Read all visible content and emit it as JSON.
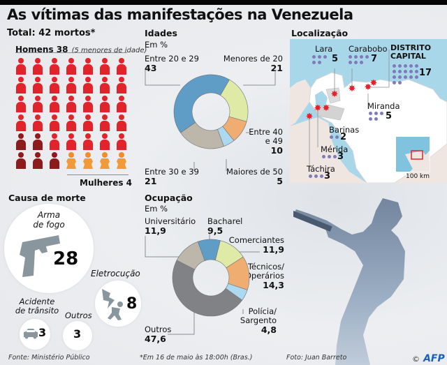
{
  "title": "As vítimas das manifestações na Venezuela",
  "total": {
    "heading": "Total: 42 mortos*",
    "men_label": "Homens 38",
    "men_note": "(5 menores de idade)",
    "women_label": "Mulheres 4",
    "grid": {
      "columns": 7,
      "rows": 6,
      "people": [
        "man",
        "man",
        "man",
        "man",
        "man",
        "man",
        "man",
        "man",
        "man",
        "man",
        "man",
        "man",
        "man",
        "man",
        "man",
        "man",
        "man",
        "man",
        "man",
        "man",
        "man",
        "man",
        "man",
        "man",
        "man",
        "man",
        "man",
        "man",
        "minor",
        "minor",
        "man",
        "man",
        "man",
        "man",
        "man",
        "minor",
        "minor",
        "minor",
        "woman",
        "woman",
        "woman",
        "woman"
      ],
      "colors": {
        "man": "#e1232b",
        "minor": "#8d1a1c",
        "woman": "#f39a38"
      }
    }
  },
  "chart_data": [
    {
      "type": "pie",
      "subtype": "donut",
      "title": "Idades",
      "subtitle": "Em %",
      "categories": [
        "Menores de 20",
        "Entre 40 e 49",
        "Maiores de 50",
        "Entre 30 e 39",
        "Entre 20 e 29"
      ],
      "values": [
        21,
        10,
        5,
        21,
        43
      ],
      "value_labels": [
        "21",
        "10",
        "5",
        "21",
        "43"
      ],
      "colors": [
        "#dfeaa6",
        "#efad72",
        "#acd9f0",
        "#bdb6ab",
        "#5f9dc6"
      ],
      "label_texts": {
        "menores": "Menores de 20",
        "e40_line1": "Entre 40",
        "e40_line2": "e 49",
        "maiores": "Maiores de 50",
        "e30": "Entre 30 e 39",
        "e20": "Entre 20 e 29"
      }
    },
    {
      "type": "pie",
      "subtype": "donut",
      "title": "Ocupação",
      "subtitle": "Em %",
      "categories": [
        "Bacharel",
        "Comerciantes",
        "Técnicos/ Operários",
        "Polícia/ Sargento",
        "Outros",
        "Universitário"
      ],
      "values": [
        9.5,
        11.9,
        14.3,
        4.8,
        47.6,
        11.9
      ],
      "value_labels": [
        "9,5",
        "11,9",
        "14,3",
        "4,8",
        "47,6",
        "11,9"
      ],
      "colors": [
        "#5f9dc6",
        "#dfeaa6",
        "#efad72",
        "#acd9f0",
        "#808285",
        "#bdb6ab"
      ],
      "label_texts": {
        "bacharel": "Bacharel",
        "comerciantes": "Comerciantes",
        "tecnicos_line1": "Técnicos/",
        "tecnicos_line2": "Operários",
        "policia_line1": "Polícia/",
        "policia_line2": "Sargento",
        "outros": "Outros",
        "universitario": "Universitário"
      }
    }
  ],
  "causes": {
    "heading": "Causa de morte",
    "items": [
      {
        "label_line1": "Arma",
        "label_line2": "de fogo",
        "value": "28",
        "icon": "pistol-icon"
      },
      {
        "label_line1": "Eletrocução",
        "value": "8",
        "icon": "lightning-person-icon"
      },
      {
        "label_line1": "Acidente",
        "label_line2": "de trânsito",
        "value": "3",
        "icon": "car-icon"
      },
      {
        "label_line1": "Outros",
        "value": "3"
      }
    ]
  },
  "location": {
    "heading": "Localização",
    "states": [
      {
        "name": "Lara",
        "count": "5",
        "n": 5
      },
      {
        "name": "Carabobo",
        "count": "7",
        "n": 7
      },
      {
        "name_line1": "DISTRITO",
        "name_line2": "CAPITAL",
        "count": "17",
        "n": 17
      },
      {
        "name": "Miranda",
        "count": "5",
        "n": 5
      },
      {
        "name": "Barinas",
        "count": "2",
        "n": 2
      },
      {
        "name": "Mérida",
        "count": "3",
        "n": 3
      },
      {
        "name": "Táchira",
        "count": "3",
        "n": 3
      }
    ],
    "scale": "100 km",
    "colors": {
      "sea": "#a9d7ea",
      "land": "#ffffff",
      "neighbor": "#efe6e2",
      "dot": "#7f7bb8",
      "marker": "#e1232b"
    }
  },
  "footer": {
    "source": "Fonte: Ministério Público",
    "note": "*Em 16 de maio às 18:00h (Bras.)",
    "photo": "Foto: Juan Barreto",
    "credit_symbol": "©",
    "agency": "AFP"
  }
}
